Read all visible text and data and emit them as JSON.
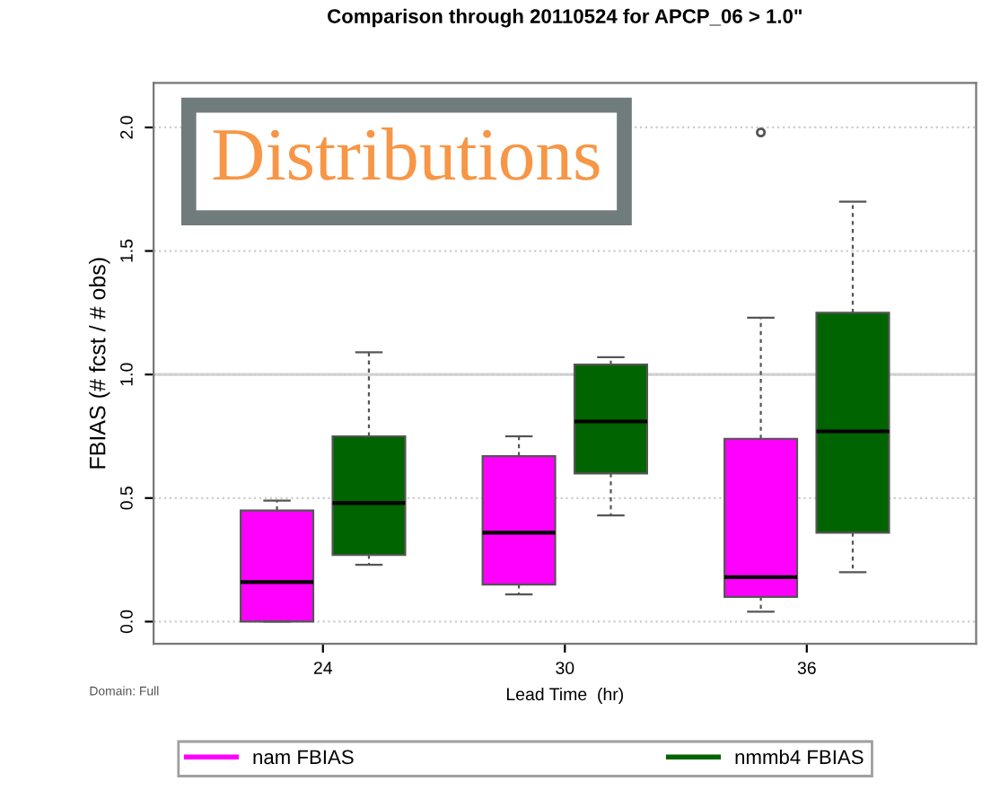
{
  "chart_data": {
    "type": "box",
    "title": "Comparison through 20110524 for APCP_06 > 1.0\"",
    "xlabel": "Lead Time  (hr)",
    "ylabel": "FBIAS (# fcst / # obs)",
    "categories": [
      "24",
      "30",
      "36"
    ],
    "series": [
      {
        "name": "nam FBIAS",
        "color": "#ff00ff",
        "boxes": [
          {
            "low": 0,
            "q1": 0,
            "median": 0.16,
            "q3": 0.45,
            "high": 0.49
          },
          {
            "low": 0.11,
            "q1": 0.15,
            "median": 0.36,
            "q3": 0.67,
            "high": 0.75
          },
          {
            "low": 0.04,
            "q1": 0.1,
            "median": 0.18,
            "q3": 0.74,
            "high": 1.23,
            "outliers": [
              1.98
            ]
          }
        ]
      },
      {
        "name": "nmmb4 FBIAS",
        "color": "#006400",
        "boxes": [
          {
            "low": 0.23,
            "q1": 0.27,
            "median": 0.48,
            "q3": 0.75,
            "high": 1.09
          },
          {
            "low": 0.43,
            "q1": 0.6,
            "median": 0.81,
            "q3": 1.04,
            "high": 1.07
          },
          {
            "low": 0.2,
            "q1": 0.36,
            "median": 0.77,
            "q3": 1.25,
            "high": 1.7
          }
        ]
      }
    ],
    "ylim": [
      -0.09,
      2.18
    ],
    "yticks": [
      {
        "value": 0,
        "label": "0.0"
      },
      0.5,
      {
        "value": 1,
        "label": "1.0"
      },
      1.5,
      {
        "value": 2,
        "label": "2.0"
      }
    ],
    "ref_lines": [
      {
        "axis": "y",
        "value": 1.0,
        "color": "#d3d3d3"
      }
    ],
    "grid": "y",
    "legend": "bottom",
    "annotations": [
      "Distributions",
      "Domain: Full"
    ]
  }
}
